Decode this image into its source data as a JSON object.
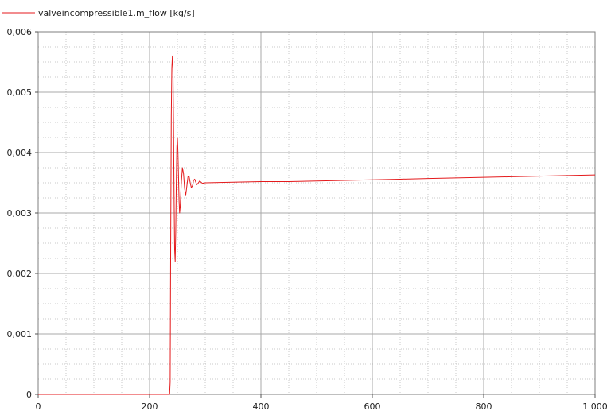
{
  "chart_data": {
    "type": "line",
    "title": "",
    "xlabel": "",
    "ylabel": "",
    "xlim": [
      0,
      1000
    ],
    "ylim": [
      0,
      0.006
    ],
    "grid": true,
    "legend_placement": "top-left",
    "x_ticks": [
      {
        "value": 0,
        "label": "0"
      },
      {
        "value": 200,
        "label": "200"
      },
      {
        "value": 400,
        "label": "400"
      },
      {
        "value": 600,
        "label": "600"
      },
      {
        "value": 800,
        "label": "800"
      },
      {
        "value": 1000,
        "label": "1 000"
      }
    ],
    "y_ticks": [
      {
        "value": 0,
        "label": "0"
      },
      {
        "value": 0.001,
        "label": "0,001"
      },
      {
        "value": 0.002,
        "label": "0,002"
      },
      {
        "value": 0.003,
        "label": "0,003"
      },
      {
        "value": 0.004,
        "label": "0,004"
      },
      {
        "value": 0.005,
        "label": "0,005"
      },
      {
        "value": 0.006,
        "label": "0,006"
      }
    ],
    "series": [
      {
        "name": "valveincompressible1.m_flow [kg/s]",
        "color": "#e41a1c",
        "x": [
          0,
          100,
          200,
          236,
          237,
          238,
          239,
          240,
          241,
          242,
          243,
          244,
          245,
          246,
          247,
          248,
          249,
          250,
          251,
          252,
          253,
          254,
          255,
          257,
          259,
          261,
          263,
          265,
          267,
          269,
          271,
          273,
          275,
          277,
          279,
          281,
          283,
          285,
          287,
          290,
          295,
          300,
          350,
          400,
          450,
          500,
          550,
          600,
          650,
          700,
          750,
          800,
          850,
          900,
          950,
          1000
        ],
        "y": [
          0,
          0,
          0,
          0,
          0.0002,
          0.0026,
          0.0046,
          0.0054,
          0.0056,
          0.0054,
          0.0045,
          0.0033,
          0.0024,
          0.0022,
          0.0027,
          0.0035,
          0.0041,
          0.00425,
          0.004,
          0.0036,
          0.0032,
          0.003,
          0.0031,
          0.0035,
          0.00375,
          0.00365,
          0.0034,
          0.0033,
          0.00345,
          0.0036,
          0.0036,
          0.0035,
          0.00342,
          0.00345,
          0.00354,
          0.00356,
          0.00351,
          0.00347,
          0.00349,
          0.00353,
          0.00349,
          0.0035,
          0.00351,
          0.00352,
          0.00352,
          0.00353,
          0.00354,
          0.00355,
          0.00356,
          0.00357,
          0.00358,
          0.00359,
          0.0036,
          0.00361,
          0.00362,
          0.00363
        ]
      }
    ]
  }
}
